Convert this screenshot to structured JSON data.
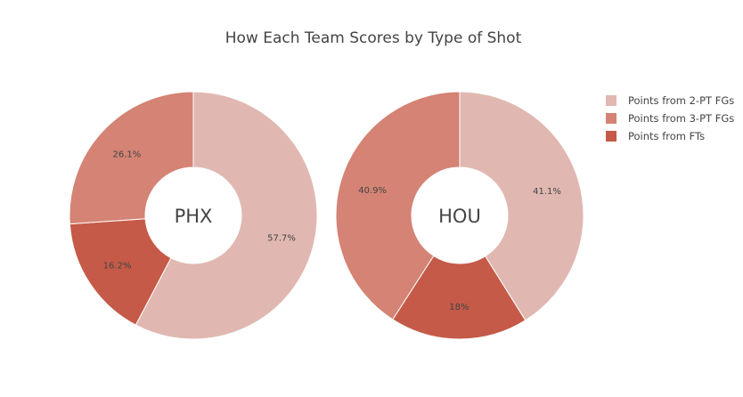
{
  "chart_data": {
    "type": "pie",
    "title": "How Each Team Scores by Type of Shot",
    "legend": {
      "position": "top-right",
      "entries": [
        "Points from 2-PT FGs",
        "Points from 3-PT FGs",
        "Points from FTs"
      ]
    },
    "colors": [
      "#e0b8b1",
      "#d48374",
      "#c55a48"
    ],
    "donut": true,
    "charts": [
      {
        "center_label": "PHX",
        "slices": [
          {
            "category": "Points from 2-PT FGs",
            "value": 57.7,
            "label": "57.7%"
          },
          {
            "category": "Points from FTs",
            "value": 16.2,
            "label": "16.2%"
          },
          {
            "category": "Points from 3-PT FGs",
            "value": 26.1,
            "label": "26.1%"
          }
        ]
      },
      {
        "center_label": "HOU",
        "slices": [
          {
            "category": "Points from 2-PT FGs",
            "value": 41.1,
            "label": "41.1%"
          },
          {
            "category": "Points from FTs",
            "value": 18.0,
            "label": "18%"
          },
          {
            "category": "Points from 3-PT FGs",
            "value": 40.9,
            "label": "40.9%"
          }
        ]
      }
    ]
  }
}
